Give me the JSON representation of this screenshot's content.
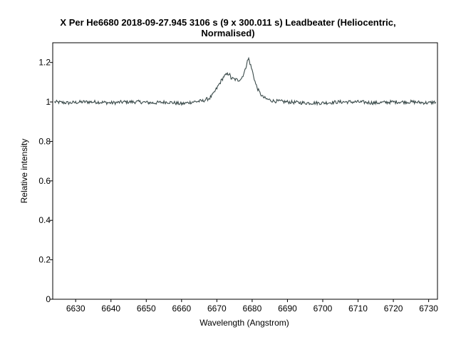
{
  "chart_data": {
    "type": "line",
    "title_lines": [
      "X Per  He6680  2018-09-27.945  3106 s (9 x 300.011 s)  Leadbeater  (Heliocentric,",
      "Normalised)"
    ],
    "xlabel": "Wavelength (Angstrom)",
    "ylabel": "Relative intensity",
    "xlim": [
      6623.5,
      6732.5
    ],
    "ylim": [
      0,
      1.3
    ],
    "x_ticks": [
      6630,
      6640,
      6650,
      6660,
      6670,
      6680,
      6690,
      6700,
      6710,
      6720,
      6730
    ],
    "y_ticks": [
      0,
      0.2,
      0.4,
      0.6,
      0.8,
      1,
      1.2
    ],
    "y_tick_labels": [
      "0",
      "0.2",
      "0.4",
      "0.6",
      "0.8",
      "1",
      "1.2"
    ],
    "grid": false,
    "series": [
      {
        "color": "#3a4a4a",
        "x": [
          6624,
          6628,
          6632,
          6636,
          6640,
          6644,
          6648,
          6652,
          6656,
          6660,
          6663,
          6666,
          6668,
          6669,
          6670,
          6671,
          6672,
          6673,
          6673.5,
          6674,
          6675,
          6676,
          6677,
          6678,
          6678.5,
          6679,
          6680,
          6681,
          6682,
          6683,
          6684,
          6686,
          6690,
          6695,
          6700,
          6705,
          6710,
          6715,
          6720,
          6725,
          6730,
          6732
        ],
        "y": [
          1.0,
          0.995,
          1.0,
          1.0,
          0.995,
          1.0,
          1.0,
          0.995,
          1.0,
          0.99,
          1.0,
          1.005,
          1.02,
          1.04,
          1.07,
          1.1,
          1.13,
          1.14,
          1.145,
          1.12,
          1.115,
          1.11,
          1.12,
          1.16,
          1.2,
          1.22,
          1.16,
          1.09,
          1.05,
          1.025,
          1.015,
          1.005,
          1.0,
          0.995,
          0.995,
          1.0,
          1.0,
          0.995,
          1.0,
          1.0,
          0.995,
          1.0
        ]
      }
    ]
  }
}
